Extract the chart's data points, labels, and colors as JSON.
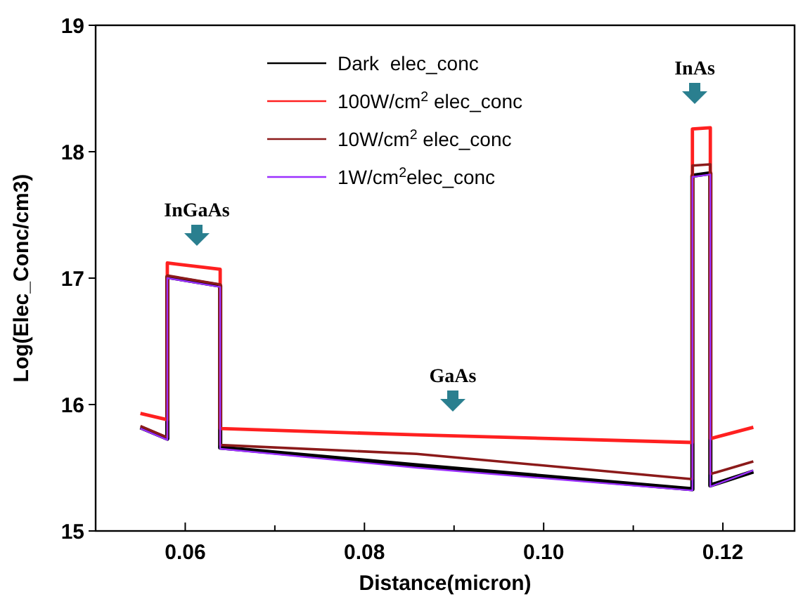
{
  "chart_data": {
    "type": "line",
    "xlabel": "Distance(micron)",
    "ylabel": "Log(Elec_Conc/cm3)",
    "xlim": [
      0.05,
      0.128
    ],
    "ylim": [
      15,
      19
    ],
    "xticks": [
      {
        "value": 0.06,
        "label": "0.06"
      },
      {
        "value": 0.07,
        "label": null
      },
      {
        "value": 0.08,
        "label": "0.08"
      },
      {
        "value": 0.09,
        "label": null
      },
      {
        "value": 0.1,
        "label": "0.10"
      },
      {
        "value": 0.11,
        "label": null
      },
      {
        "value": 0.12,
        "label": "0.12"
      }
    ],
    "yticks": [
      15,
      16,
      17,
      18,
      19
    ],
    "grid": false,
    "legend": "top",
    "marker": "none",
    "line_style": "solid",
    "annotations": [
      "InGaAs",
      "GaAs",
      "InAs"
    ],
    "series": [
      {
        "name": "Dark  elec_conc",
        "color": "#000000",
        "x": [
          0.055,
          0.058,
          0.058,
          0.0639,
          0.0639,
          0.0858,
          0.1166,
          0.1166,
          0.1186,
          0.1186,
          0.1234
        ],
        "values": [
          15.82,
          15.73,
          17.01,
          16.94,
          15.66,
          15.52,
          15.33,
          17.81,
          17.83,
          15.36,
          15.47
        ]
      },
      {
        "name": "100W/cm$^{2}$ elec_conc",
        "color": "#ff2020",
        "x": [
          0.055,
          0.058,
          0.058,
          0.0639,
          0.0639,
          0.0858,
          0.1166,
          0.1166,
          0.1186,
          0.1186,
          0.1234
        ],
        "values": [
          15.93,
          15.88,
          17.12,
          17.07,
          15.81,
          15.76,
          15.7,
          18.18,
          18.19,
          15.73,
          15.82
        ]
      },
      {
        "name": "10W/cm$^{2}$ elec_conc",
        "color": "#8b1a1a",
        "x": [
          0.055,
          0.058,
          0.058,
          0.0639,
          0.0639,
          0.0858,
          0.1166,
          0.1166,
          0.1186,
          0.1186,
          0.1234
        ],
        "values": [
          15.83,
          15.74,
          17.02,
          16.95,
          15.68,
          15.61,
          15.41,
          17.89,
          17.9,
          15.45,
          15.55
        ]
      },
      {
        "name": "1W/cm$^{2}$elec_conc",
        "color": "#9b30ff",
        "x": [
          0.055,
          0.058,
          0.058,
          0.0639,
          0.0639,
          0.0858,
          0.1166,
          0.1166,
          0.1186,
          0.1186,
          0.1234
        ],
        "values": [
          15.81,
          15.72,
          17.0,
          16.93,
          15.65,
          15.5,
          15.32,
          17.8,
          17.82,
          15.35,
          15.48
        ]
      }
    ]
  }
}
